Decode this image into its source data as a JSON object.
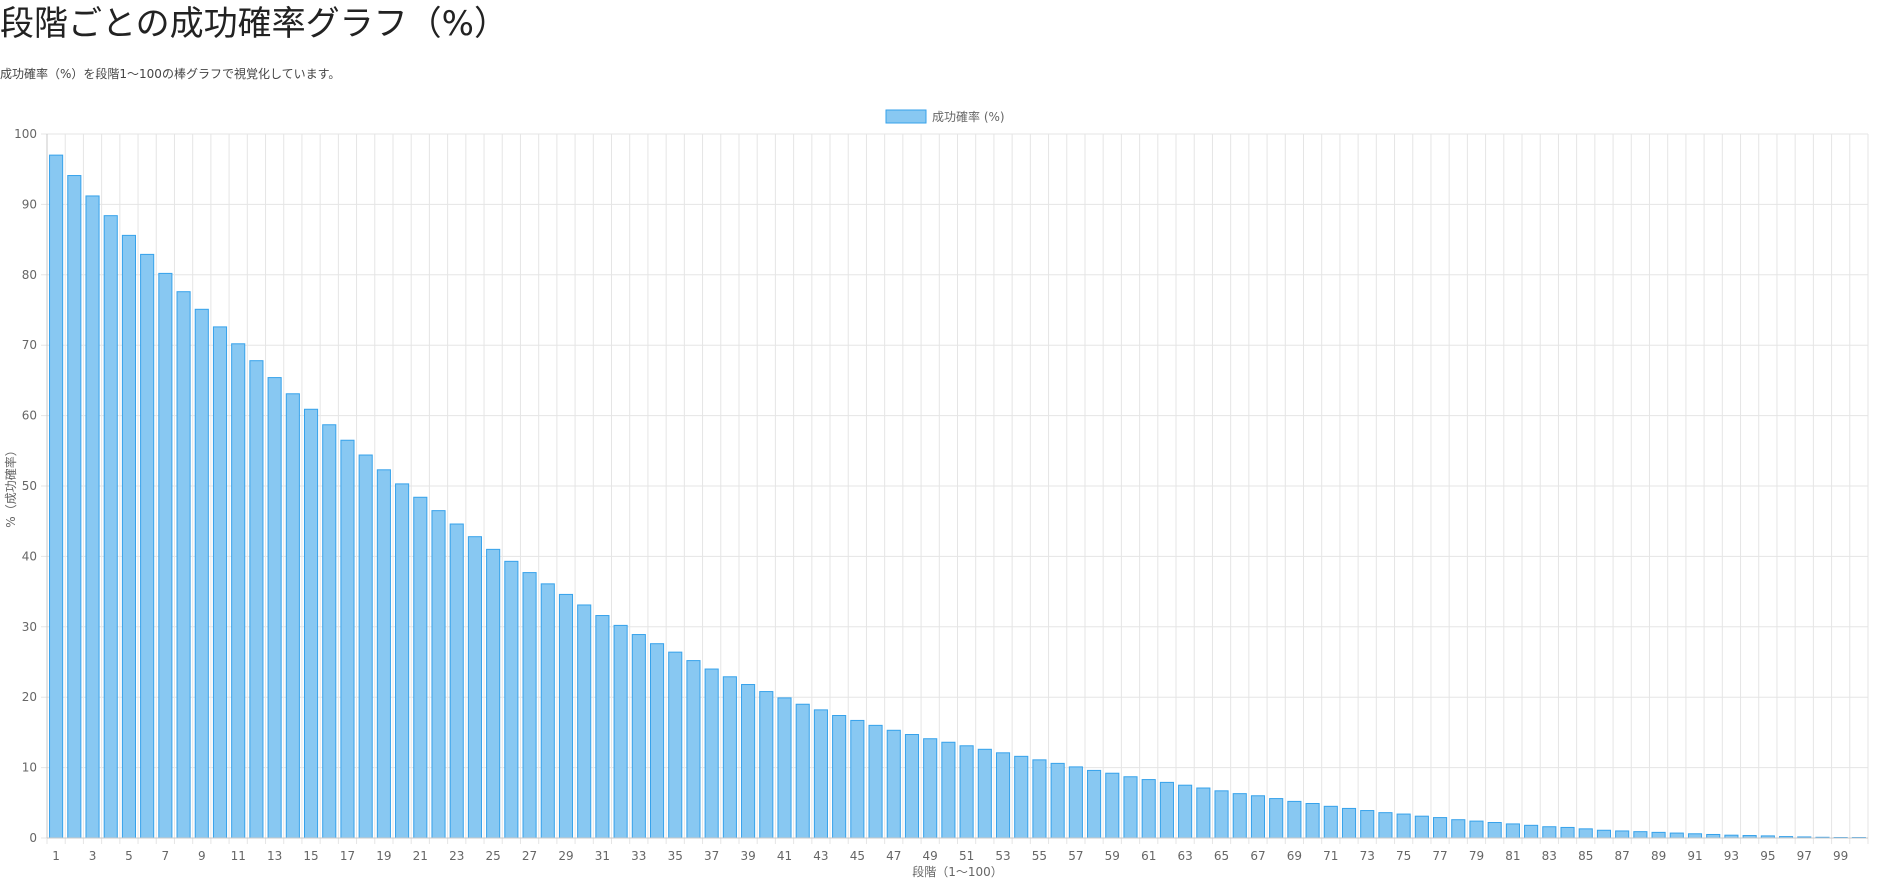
{
  "page": {
    "title": "段階ごとの成功確率グラフ（%）",
    "subtitle": "成功確率（%）を段階1〜100の棒グラフで視覚化しています。"
  },
  "chart_data": {
    "type": "bar",
    "categories": [
      1,
      2,
      3,
      4,
      5,
      6,
      7,
      8,
      9,
      10,
      11,
      12,
      13,
      14,
      15,
      16,
      17,
      18,
      19,
      20,
      21,
      22,
      23,
      24,
      25,
      26,
      27,
      28,
      29,
      30,
      31,
      32,
      33,
      34,
      35,
      36,
      37,
      38,
      39,
      40,
      41,
      42,
      43,
      44,
      45,
      46,
      47,
      48,
      49,
      50,
      51,
      52,
      53,
      54,
      55,
      56,
      57,
      58,
      59,
      60,
      61,
      62,
      63,
      64,
      65,
      66,
      67,
      68,
      69,
      70,
      71,
      72,
      73,
      74,
      75,
      76,
      77,
      78,
      79,
      80,
      81,
      82,
      83,
      84,
      85,
      86,
      87,
      88,
      89,
      90,
      91,
      92,
      93,
      94,
      95,
      96,
      97,
      98,
      99,
      100
    ],
    "x_tick_labels": [
      "1",
      "3",
      "5",
      "7",
      "9",
      "11",
      "13",
      "15",
      "17",
      "19",
      "21",
      "23",
      "25",
      "27",
      "29",
      "31",
      "33",
      "35",
      "37",
      "39",
      "41",
      "43",
      "45",
      "47",
      "49",
      "51",
      "53",
      "55",
      "57",
      "59",
      "61",
      "63",
      "65",
      "67",
      "69",
      "71",
      "73",
      "75",
      "77",
      "79",
      "81",
      "83",
      "85",
      "87",
      "89",
      "91",
      "93",
      "95",
      "97",
      "99"
    ],
    "series": [
      {
        "name": "成功確率 (%)",
        "values": [
          97.0,
          94.1,
          91.2,
          88.4,
          85.6,
          82.9,
          80.2,
          77.6,
          75.1,
          72.6,
          70.2,
          67.8,
          65.4,
          63.1,
          60.9,
          58.7,
          56.5,
          54.4,
          52.3,
          50.3,
          48.4,
          46.5,
          44.6,
          42.8,
          41.0,
          39.3,
          37.7,
          36.1,
          34.6,
          33.1,
          31.6,
          30.2,
          28.9,
          27.6,
          26.4,
          25.2,
          24.0,
          22.9,
          21.8,
          20.8,
          19.9,
          19.0,
          18.2,
          17.4,
          16.7,
          16.0,
          15.3,
          14.7,
          14.1,
          13.6,
          13.1,
          12.6,
          12.1,
          11.6,
          11.1,
          10.6,
          10.1,
          9.6,
          9.2,
          8.7,
          8.3,
          7.9,
          7.5,
          7.1,
          6.7,
          6.3,
          6.0,
          5.6,
          5.2,
          4.9,
          4.5,
          4.2,
          3.9,
          3.6,
          3.4,
          3.1,
          2.9,
          2.6,
          2.4,
          2.2,
          2.0,
          1.8,
          1.6,
          1.5,
          1.3,
          1.1,
          1.0,
          0.9,
          0.8,
          0.7,
          0.6,
          0.5,
          0.4,
          0.35,
          0.3,
          0.2,
          0.15,
          0.1,
          0.05,
          0.02
        ],
        "color": "#88c8f2",
        "border_color": "#36a2eb"
      }
    ],
    "xlabel": "段階（1〜100）",
    "ylabel": "%（成功確率）",
    "ylim": [
      0,
      100
    ],
    "y_ticks": [
      0,
      10,
      20,
      30,
      40,
      50,
      60,
      70,
      80,
      90,
      100
    ],
    "grid": true,
    "legend_position": "top-center",
    "colors": {
      "grid": "#e5e5e5",
      "axis": "#c8c8c8",
      "tick_text": "#666666"
    }
  }
}
